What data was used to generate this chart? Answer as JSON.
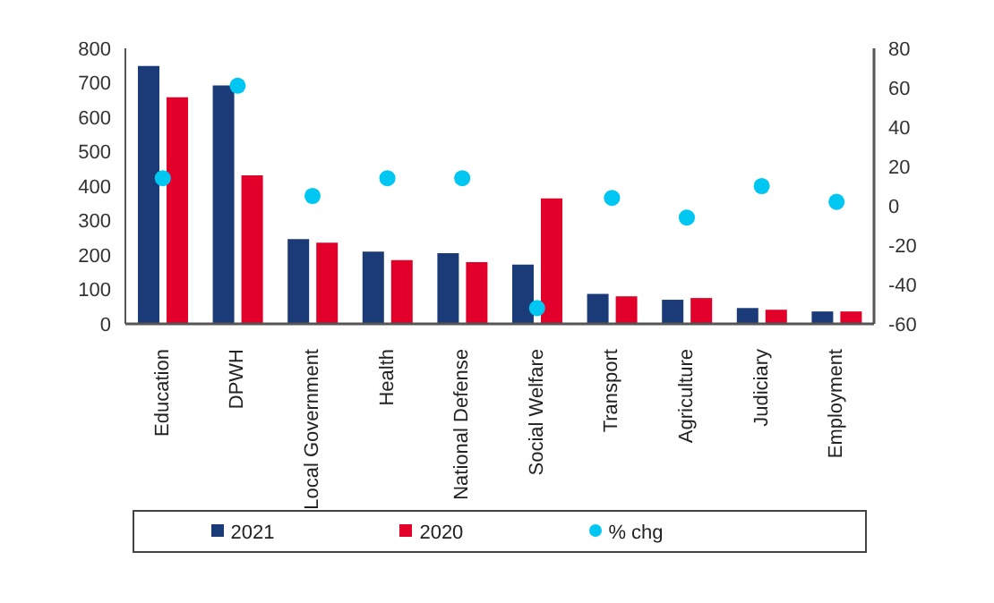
{
  "chart_data": {
    "type": "bar",
    "categories": [
      "Education",
      "DPWH",
      "Local Government",
      "Health",
      "National Defense",
      "Social Welfare",
      "Transport",
      "Agriculture",
      "Judiciary",
      "Employment"
    ],
    "series": [
      {
        "name": "2021",
        "color": "#1b3a78",
        "values": [
          749,
          692,
          246,
          210,
          205,
          172,
          87,
          70,
          46,
          36
        ]
      },
      {
        "name": "2020",
        "color": "#e2002a",
        "values": [
          658,
          431,
          236,
          185,
          179,
          364,
          80,
          75,
          41,
          36
        ]
      },
      {
        "name": "% chg",
        "type": "scatter",
        "axis": "y2",
        "color": "#00c6f2",
        "values": [
          14,
          61,
          5,
          14,
          14,
          -52,
          4,
          -6,
          10,
          2
        ]
      }
    ],
    "ylim": [
      0,
      800
    ],
    "yticks": [
      0,
      100,
      200,
      300,
      400,
      500,
      600,
      700,
      800
    ],
    "y2lim": [
      -60,
      80
    ],
    "y2ticks": [
      -60,
      -40,
      -20,
      0,
      20,
      40,
      60,
      80
    ],
    "grid": false,
    "legend": "bottom",
    "marker": "circle"
  }
}
